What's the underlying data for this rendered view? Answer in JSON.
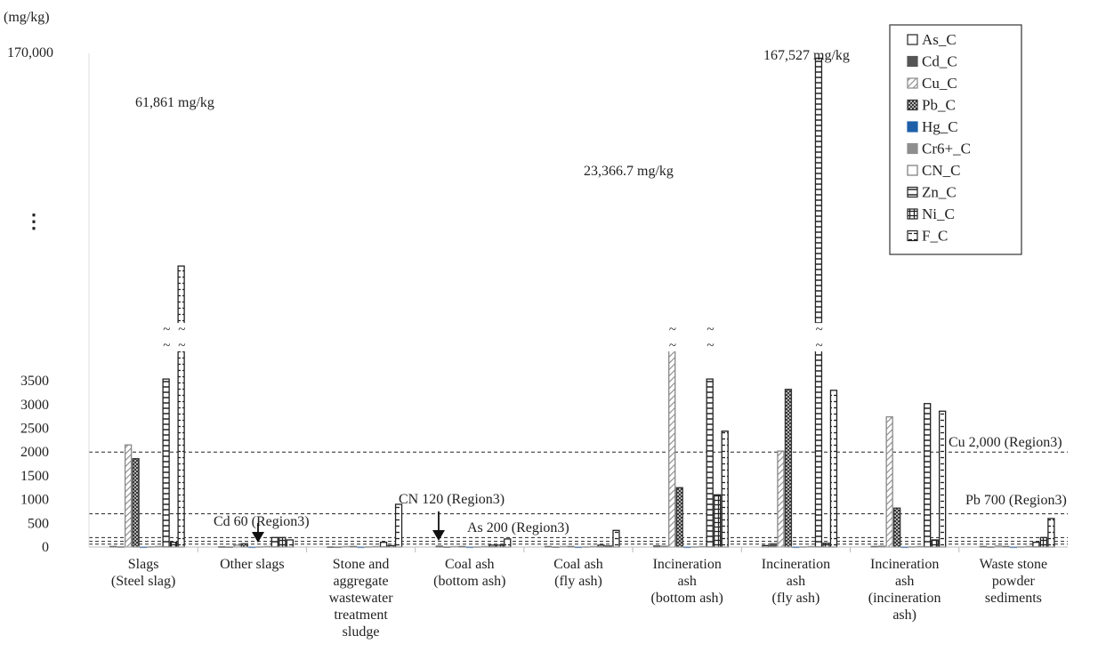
{
  "chart_data": {
    "type": "bar",
    "title": "",
    "ylabel": "(mg/kg)",
    "y_axis": {
      "ticks": [
        "0",
        "500",
        "1000",
        "1500",
        "2000",
        "2500",
        "3000",
        "3500"
      ],
      "break_symbol": "⋮",
      "top_label": "170,000",
      "ylim": [
        0,
        170000
      ],
      "broken": true
    },
    "categories": [
      "Slags\n(Steel slag)",
      "Other slags",
      "Stone and\naggregate\nwastewater\ntreatment\nsludge",
      "Coal ash\n(bottom ash)",
      "Coal ash\n(fly ash)",
      "Incineration\nash\n(bottom ash)",
      "Incineration\nash\n(fly ash)",
      "Incineration\nash\n(incineration\nash)",
      "Waste stone\npowder\nsediments"
    ],
    "series": [
      {
        "name": "As_C",
        "values": [
          10,
          5,
          3,
          15,
          10,
          20,
          30,
          10,
          10
        ]
      },
      {
        "name": "Cd_C",
        "values": [
          5,
          3,
          2,
          3,
          3,
          15,
          70,
          15,
          3
        ]
      },
      {
        "name": "Cu_C",
        "values": [
          2150,
          40,
          10,
          10,
          10,
          23366.7,
          2020,
          2740,
          20
        ]
      },
      {
        "name": "Pb_C",
        "values": [
          1860,
          70,
          10,
          10,
          10,
          1250,
          3320,
          820,
          10
        ]
      },
      {
        "name": "Hg_C",
        "values": [
          1,
          1,
          1,
          1,
          1,
          1,
          1,
          1,
          1
        ]
      },
      {
        "name": "Cr6+_C",
        "values": [
          5,
          5,
          5,
          5,
          5,
          5,
          5,
          5,
          5
        ]
      },
      {
        "name": "CN_C",
        "values": [
          10,
          10,
          10,
          10,
          10,
          10,
          10,
          10,
          10
        ]
      },
      {
        "name": "Zn_C",
        "values": [
          4400,
          200,
          100,
          40,
          40,
          4400,
          167527,
          3020,
          100
        ]
      },
      {
        "name": "Ni_C",
        "values": [
          100,
          200,
          30,
          40,
          20,
          1100,
          80,
          150,
          200
        ]
      },
      {
        "name": "F_C",
        "values": [
          61861,
          150,
          900,
          170,
          350,
          2440,
          3300,
          2860,
          600
        ]
      }
    ],
    "value_annotations": [
      "61,861 mg/kg",
      "23,366.7 mg/kg",
      "167,527 mg/kg"
    ],
    "reference_lines": [
      {
        "label": "Cu 2,000 (Region3)",
        "value": 2000
      },
      {
        "label": "Pb 700 (Region3)",
        "value": 700
      },
      {
        "label": "As 200 (Region3)",
        "value": 200
      },
      {
        "label": "CN 120 (Region3)",
        "value": 120
      },
      {
        "label": "Cd 60 (Region3)",
        "value": 60
      }
    ],
    "legend_position": "top-right",
    "grid": false
  }
}
